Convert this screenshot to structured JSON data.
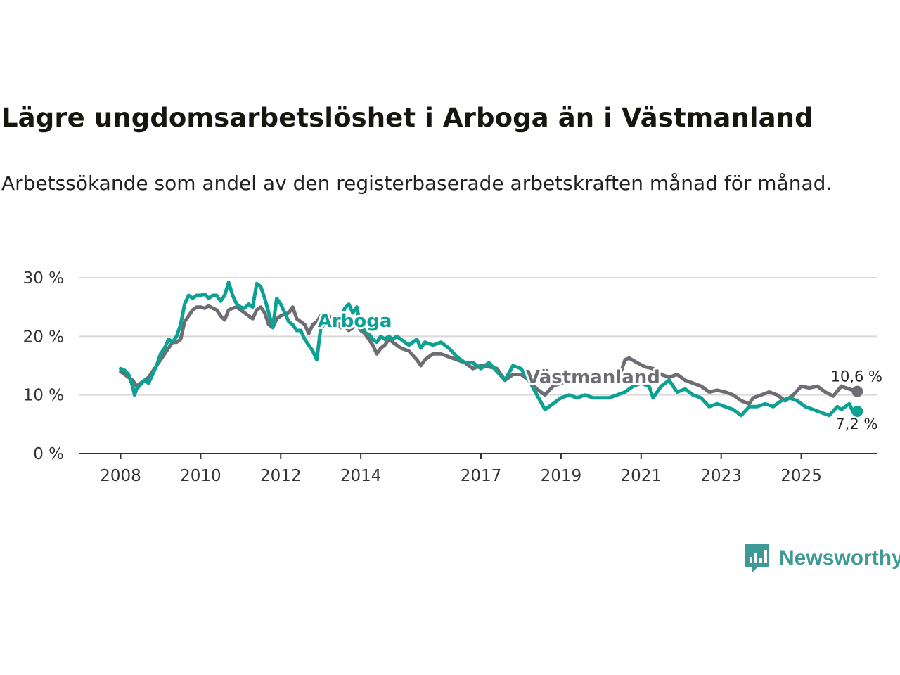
{
  "title": "Lägre ungdomsarbetslöshet i Arboga än i Västmanland",
  "subtitle": "Arbetssökande som andel av den registerbaserade arbetskraften månad för månad.",
  "brand": {
    "name": "Newsworthy",
    "icon": "newsworthy-logo-icon",
    "color": "#3e9a95"
  },
  "chart_data": {
    "type": "line",
    "title": "Lägre ungdomsarbetslöshet i Arboga än i Västmanland",
    "xlabel": "",
    "ylabel": "",
    "ylim": [
      0,
      30
    ],
    "xlim": [
      2007.5,
      2026.5
    ],
    "yticks": [
      {
        "value": 0,
        "label": "0 %"
      },
      {
        "value": 10,
        "label": "10 %"
      },
      {
        "value": 20,
        "label": "20 %"
      },
      {
        "value": 30,
        "label": "30 %"
      }
    ],
    "xticks": [
      {
        "value": 2008,
        "label": "2008"
      },
      {
        "value": 2010,
        "label": "2010"
      },
      {
        "value": 2012,
        "label": "2012"
      },
      {
        "value": 2014,
        "label": "2014"
      },
      {
        "value": 2017,
        "label": "2017"
      },
      {
        "value": 2019,
        "label": "2019"
      },
      {
        "value": 2021,
        "label": "2021"
      },
      {
        "value": 2023,
        "label": "2023"
      },
      {
        "value": 2025,
        "label": "2025"
      }
    ],
    "grid": true,
    "series": [
      {
        "name": "Västmanland",
        "color": "#6e6d73",
        "label": {
          "text": "Västmanland",
          "x": 2019.8,
          "y": 12
        },
        "end_label": "10,6 %",
        "points": [
          [
            2008.0,
            14.0
          ],
          [
            2008.1,
            13.5
          ],
          [
            2008.2,
            13.0
          ],
          [
            2008.3,
            12.5
          ],
          [
            2008.4,
            11.5
          ],
          [
            2008.5,
            12.0
          ],
          [
            2008.6,
            12.5
          ],
          [
            2008.7,
            13.0
          ],
          [
            2008.8,
            14.0
          ],
          [
            2008.9,
            15.0
          ],
          [
            2009.0,
            16.0
          ],
          [
            2009.1,
            17.0
          ],
          [
            2009.2,
            18.0
          ],
          [
            2009.3,
            19.0
          ],
          [
            2009.4,
            19.0
          ],
          [
            2009.5,
            19.5
          ],
          [
            2009.6,
            22.5
          ],
          [
            2009.7,
            23.5
          ],
          [
            2009.8,
            24.5
          ],
          [
            2009.9,
            25.0
          ],
          [
            2010.0,
            25.0
          ],
          [
            2010.1,
            24.8
          ],
          [
            2010.2,
            25.2
          ],
          [
            2010.3,
            24.8
          ],
          [
            2010.4,
            24.5
          ],
          [
            2010.5,
            23.5
          ],
          [
            2010.6,
            22.8
          ],
          [
            2010.7,
            24.5
          ],
          [
            2010.8,
            24.8
          ],
          [
            2010.9,
            25.0
          ],
          [
            2011.0,
            24.5
          ],
          [
            2011.1,
            24.0
          ],
          [
            2011.2,
            23.5
          ],
          [
            2011.3,
            23.0
          ],
          [
            2011.4,
            24.5
          ],
          [
            2011.5,
            25.0
          ],
          [
            2011.6,
            24.0
          ],
          [
            2011.7,
            22.0
          ],
          [
            2011.8,
            21.5
          ],
          [
            2011.9,
            23.0
          ],
          [
            2012.0,
            23.5
          ],
          [
            2012.1,
            23.8
          ],
          [
            2012.2,
            24.0
          ],
          [
            2012.3,
            25.0
          ],
          [
            2012.4,
            23.0
          ],
          [
            2012.5,
            22.5
          ],
          [
            2012.6,
            22.0
          ],
          [
            2012.7,
            20.5
          ],
          [
            2012.8,
            22.0
          ],
          [
            2012.9,
            22.5
          ],
          [
            2013.0,
            23.5
          ],
          [
            2013.1,
            23.8
          ],
          [
            2013.2,
            23.5
          ],
          [
            2013.3,
            23.0
          ],
          [
            2013.4,
            22.5
          ],
          [
            2013.5,
            21.5
          ],
          [
            2013.6,
            21.8
          ],
          [
            2013.7,
            21.0
          ],
          [
            2013.8,
            21.5
          ],
          [
            2013.9,
            22.0
          ],
          [
            2014.0,
            21.0
          ],
          [
            2014.1,
            20.5
          ],
          [
            2014.2,
            19.5
          ],
          [
            2014.3,
            18.5
          ],
          [
            2014.4,
            17.0
          ],
          [
            2014.5,
            18.0
          ],
          [
            2014.6,
            18.5
          ],
          [
            2014.7,
            19.5
          ],
          [
            2014.8,
            19.0
          ],
          [
            2014.9,
            18.5
          ],
          [
            2015.0,
            18.0
          ],
          [
            2015.2,
            17.5
          ],
          [
            2015.4,
            16.0
          ],
          [
            2015.5,
            15.0
          ],
          [
            2015.6,
            16.0
          ],
          [
            2015.8,
            17.0
          ],
          [
            2016.0,
            17.0
          ],
          [
            2016.2,
            16.5
          ],
          [
            2016.4,
            16.0
          ],
          [
            2016.6,
            15.5
          ],
          [
            2016.8,
            14.5
          ],
          [
            2017.0,
            15.0
          ],
          [
            2017.2,
            14.8
          ],
          [
            2017.4,
            14.5
          ],
          [
            2017.5,
            13.5
          ],
          [
            2017.6,
            12.5
          ],
          [
            2017.8,
            13.5
          ],
          [
            2018.0,
            13.5
          ],
          [
            2018.2,
            12.5
          ],
          [
            2018.4,
            11.0
          ],
          [
            2018.6,
            10.0
          ],
          [
            2018.8,
            11.5
          ],
          [
            2019.0,
            12.0
          ],
          [
            2019.2,
            12.5
          ],
          [
            2019.5,
            12.5
          ],
          [
            2019.8,
            12.5
          ],
          [
            2020.1,
            12.5
          ],
          [
            2020.3,
            13.5
          ],
          [
            2020.5,
            14.0
          ],
          [
            2020.6,
            16.0
          ],
          [
            2020.7,
            16.3
          ],
          [
            2020.9,
            15.5
          ],
          [
            2021.1,
            14.8
          ],
          [
            2021.3,
            14.5
          ],
          [
            2021.5,
            13.5
          ],
          [
            2021.7,
            13.0
          ],
          [
            2021.9,
            13.5
          ],
          [
            2022.1,
            12.5
          ],
          [
            2022.3,
            12.0
          ],
          [
            2022.5,
            11.5
          ],
          [
            2022.7,
            10.5
          ],
          [
            2022.9,
            10.8
          ],
          [
            2023.1,
            10.5
          ],
          [
            2023.3,
            10.0
          ],
          [
            2023.5,
            9.0
          ],
          [
            2023.7,
            8.5
          ],
          [
            2023.8,
            9.5
          ],
          [
            2024.0,
            10.0
          ],
          [
            2024.2,
            10.5
          ],
          [
            2024.4,
            10.0
          ],
          [
            2024.6,
            9.0
          ],
          [
            2024.8,
            10.0
          ],
          [
            2025.0,
            11.5
          ],
          [
            2025.2,
            11.2
          ],
          [
            2025.4,
            11.5
          ],
          [
            2025.6,
            10.5
          ],
          [
            2025.8,
            9.8
          ],
          [
            2026.0,
            11.5
          ],
          [
            2026.2,
            11.0
          ],
          [
            2026.4,
            10.6
          ]
        ]
      },
      {
        "name": "Arboga",
        "color": "#0da193",
        "label": {
          "text": "Arboga",
          "x": 2013.85,
          "y": 21.6
        },
        "end_label": "7,2 %",
        "points": [
          [
            2008.0,
            14.5
          ],
          [
            2008.1,
            14.2
          ],
          [
            2008.2,
            13.5
          ],
          [
            2008.3,
            11.5
          ],
          [
            2008.35,
            10.0
          ],
          [
            2008.4,
            11.0
          ],
          [
            2008.5,
            11.8
          ],
          [
            2008.6,
            12.5
          ],
          [
            2008.7,
            12.0
          ],
          [
            2008.8,
            13.5
          ],
          [
            2008.9,
            15.0
          ],
          [
            2009.0,
            17.0
          ],
          [
            2009.1,
            18.0
          ],
          [
            2009.2,
            19.5
          ],
          [
            2009.3,
            19.0
          ],
          [
            2009.4,
            20.0
          ],
          [
            2009.5,
            22.0
          ],
          [
            2009.6,
            25.5
          ],
          [
            2009.7,
            27.0
          ],
          [
            2009.8,
            26.5
          ],
          [
            2009.9,
            27.0
          ],
          [
            2010.0,
            27.0
          ],
          [
            2010.1,
            27.2
          ],
          [
            2010.2,
            26.5
          ],
          [
            2010.3,
            27.0
          ],
          [
            2010.4,
            27.0
          ],
          [
            2010.5,
            26.0
          ],
          [
            2010.6,
            27.0
          ],
          [
            2010.7,
            29.2
          ],
          [
            2010.8,
            27.0
          ],
          [
            2010.9,
            25.5
          ],
          [
            2011.0,
            25.0
          ],
          [
            2011.1,
            24.8
          ],
          [
            2011.2,
            25.5
          ],
          [
            2011.3,
            25.0
          ],
          [
            2011.4,
            29.0
          ],
          [
            2011.5,
            28.5
          ],
          [
            2011.6,
            26.5
          ],
          [
            2011.7,
            24.0
          ],
          [
            2011.8,
            21.5
          ],
          [
            2011.9,
            26.5
          ],
          [
            2012.0,
            25.5
          ],
          [
            2012.1,
            24.0
          ],
          [
            2012.2,
            22.5
          ],
          [
            2012.3,
            22.0
          ],
          [
            2012.4,
            21.0
          ],
          [
            2012.5,
            21.0
          ],
          [
            2012.6,
            19.5
          ],
          [
            2012.7,
            18.5
          ],
          [
            2012.8,
            17.5
          ],
          [
            2012.9,
            16.0
          ],
          [
            2013.0,
            21.5
          ],
          [
            2013.1,
            22.0
          ],
          [
            2013.2,
            22.0
          ],
          [
            2013.3,
            22.5
          ],
          [
            2013.4,
            22.8
          ],
          [
            2013.5,
            23.0
          ],
          [
            2013.6,
            24.8
          ],
          [
            2013.7,
            25.5
          ],
          [
            2013.8,
            24.0
          ],
          [
            2013.9,
            25.0
          ],
          [
            2014.0,
            21.5
          ],
          [
            2014.1,
            21.0
          ],
          [
            2014.2,
            20.5
          ],
          [
            2014.3,
            19.5
          ],
          [
            2014.4,
            19.0
          ],
          [
            2014.5,
            20.0
          ],
          [
            2014.6,
            19.5
          ],
          [
            2014.7,
            20.0
          ],
          [
            2014.8,
            19.5
          ],
          [
            2014.9,
            20.0
          ],
          [
            2015.0,
            19.5
          ],
          [
            2015.2,
            18.5
          ],
          [
            2015.4,
            19.5
          ],
          [
            2015.5,
            18.0
          ],
          [
            2015.6,
            19.0
          ],
          [
            2015.8,
            18.5
          ],
          [
            2016.0,
            19.0
          ],
          [
            2016.2,
            18.0
          ],
          [
            2016.4,
            16.5
          ],
          [
            2016.6,
            15.5
          ],
          [
            2016.8,
            15.5
          ],
          [
            2017.0,
            14.5
          ],
          [
            2017.2,
            15.5
          ],
          [
            2017.4,
            14.0
          ],
          [
            2017.6,
            12.5
          ],
          [
            2017.8,
            15.0
          ],
          [
            2018.0,
            14.5
          ],
          [
            2018.2,
            12.5
          ],
          [
            2018.4,
            10.0
          ],
          [
            2018.6,
            7.5
          ],
          [
            2018.8,
            8.5
          ],
          [
            2019.0,
            9.5
          ],
          [
            2019.2,
            10.0
          ],
          [
            2019.4,
            9.5
          ],
          [
            2019.6,
            10.0
          ],
          [
            2019.8,
            9.5
          ],
          [
            2020.0,
            9.5
          ],
          [
            2020.2,
            9.5
          ],
          [
            2020.4,
            10.0
          ],
          [
            2020.6,
            10.5
          ],
          [
            2020.8,
            11.5
          ],
          [
            2021.0,
            12.0
          ],
          [
            2021.2,
            11.5
          ],
          [
            2021.3,
            9.5
          ],
          [
            2021.5,
            11.5
          ],
          [
            2021.7,
            12.5
          ],
          [
            2021.9,
            10.5
          ],
          [
            2022.1,
            11.0
          ],
          [
            2022.3,
            10.0
          ],
          [
            2022.5,
            9.5
          ],
          [
            2022.7,
            8.0
          ],
          [
            2022.9,
            8.5
          ],
          [
            2023.1,
            8.0
          ],
          [
            2023.3,
            7.5
          ],
          [
            2023.5,
            6.5
          ],
          [
            2023.7,
            8.0
          ],
          [
            2023.9,
            8.0
          ],
          [
            2024.1,
            8.5
          ],
          [
            2024.3,
            8.0
          ],
          [
            2024.5,
            9.0
          ],
          [
            2024.7,
            9.5
          ],
          [
            2024.9,
            9.0
          ],
          [
            2025.1,
            8.0
          ],
          [
            2025.3,
            7.5
          ],
          [
            2025.5,
            7.0
          ],
          [
            2025.7,
            6.5
          ],
          [
            2025.9,
            8.0
          ],
          [
            2026.0,
            7.5
          ],
          [
            2026.2,
            8.5
          ],
          [
            2026.3,
            7.0
          ],
          [
            2026.4,
            7.2
          ]
        ]
      }
    ]
  }
}
